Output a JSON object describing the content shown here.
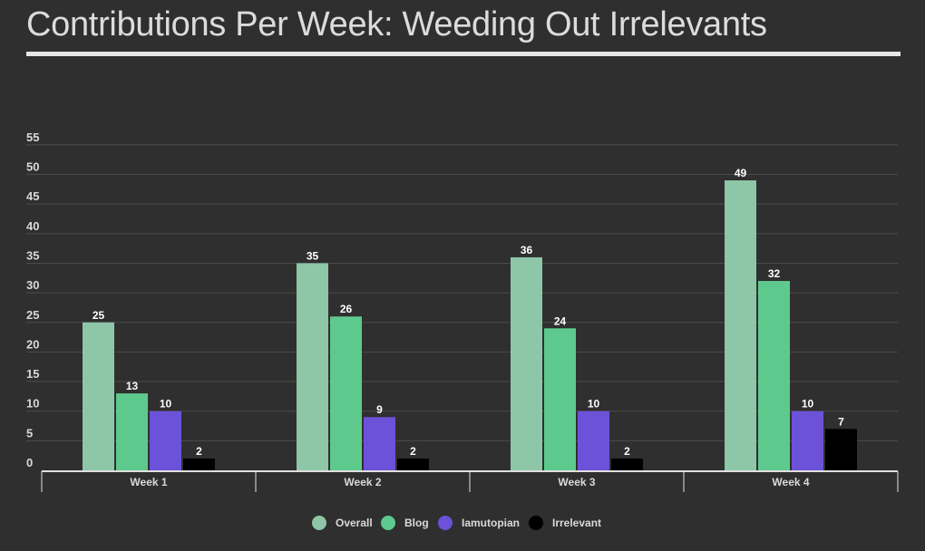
{
  "title": "Contributions Per Week: Weeding Out Irrelevants",
  "chart_data": {
    "type": "bar",
    "categories": [
      "Week 1",
      "Week 2",
      "Week 3",
      "Week 4"
    ],
    "series": [
      {
        "name": "Overall",
        "color": "#8ec6a8",
        "values": [
          25,
          35,
          36,
          49
        ]
      },
      {
        "name": "Blog",
        "color": "#5ec98d",
        "values": [
          13,
          26,
          24,
          32
        ]
      },
      {
        "name": "Iamutopian",
        "color": "#6c52d8",
        "values": [
          10,
          9,
          10,
          10
        ]
      },
      {
        "name": "Irrelevant",
        "color": "#000000",
        "values": [
          2,
          2,
          2,
          7
        ]
      }
    ],
    "yticks": [
      0,
      5,
      10,
      15,
      20,
      25,
      30,
      35,
      40,
      45,
      50,
      55
    ],
    "ylim": [
      0,
      56
    ],
    "grid": true,
    "legend": "bottom",
    "data_labels": true
  }
}
